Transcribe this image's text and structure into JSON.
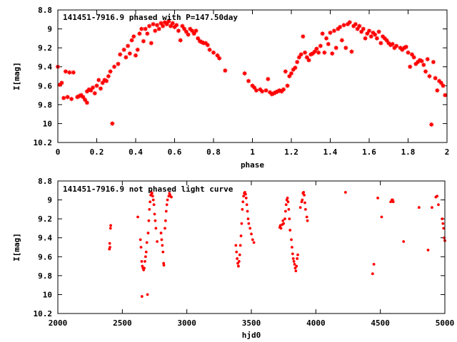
{
  "chart_data": [
    {
      "type": "scatter",
      "title": "141451-7916.9 phased with P=147.50day",
      "xlabel": "phase",
      "ylabel": "I[mag]",
      "xlim": [
        0,
        2
      ],
      "ylim": [
        10.2,
        8.8
      ],
      "y_inverted": true,
      "xticks": [
        "0",
        "0.2",
        "0.4",
        "0.6",
        "0.8",
        "1",
        "1.2",
        "1.4",
        "1.6",
        "1.8",
        "2"
      ],
      "yticks": [
        "8.8",
        "9",
        "9.2",
        "9.4",
        "9.6",
        "9.8",
        "10",
        "10.2"
      ],
      "marker_color": "#ff0000",
      "marker": "star",
      "points": [
        [
          0.0,
          9.4
        ],
        [
          0.01,
          9.59
        ],
        [
          0.02,
          9.57
        ],
        [
          0.03,
          9.73
        ],
        [
          0.04,
          9.45
        ],
        [
          0.05,
          9.72
        ],
        [
          0.06,
          9.46
        ],
        [
          0.07,
          9.74
        ],
        [
          0.08,
          9.46
        ],
        [
          0.1,
          9.72
        ],
        [
          0.11,
          9.71
        ],
        [
          0.12,
          9.7
        ],
        [
          0.13,
          9.72
        ],
        [
          0.14,
          9.75
        ],
        [
          0.15,
          9.78
        ],
        [
          0.15,
          9.66
        ],
        [
          0.16,
          9.64
        ],
        [
          0.17,
          9.65
        ],
        [
          0.18,
          9.62
        ],
        [
          0.19,
          9.68
        ],
        [
          0.2,
          9.6
        ],
        [
          0.21,
          9.54
        ],
        [
          0.22,
          9.63
        ],
        [
          0.23,
          9.57
        ],
        [
          0.24,
          9.54
        ],
        [
          0.25,
          9.55
        ],
        [
          0.26,
          9.5
        ],
        [
          0.27,
          9.45
        ],
        [
          0.28,
          10.0
        ],
        [
          0.29,
          9.4
        ],
        [
          0.31,
          9.37
        ],
        [
          0.32,
          9.27
        ],
        [
          0.34,
          9.22
        ],
        [
          0.35,
          9.3
        ],
        [
          0.36,
          9.18
        ],
        [
          0.37,
          9.26
        ],
        [
          0.38,
          9.12
        ],
        [
          0.39,
          9.08
        ],
        [
          0.4,
          9.28
        ],
        [
          0.41,
          9.22
        ],
        [
          0.42,
          9.05
        ],
        [
          0.43,
          9.0
        ],
        [
          0.44,
          9.13
        ],
        [
          0.45,
          9.0
        ],
        [
          0.46,
          9.05
        ],
        [
          0.47,
          8.97
        ],
        [
          0.48,
          9.15
        ],
        [
          0.49,
          8.95
        ],
        [
          0.5,
          9.02
        ],
        [
          0.51,
          8.96
        ],
        [
          0.52,
          9.0
        ],
        [
          0.53,
          8.94
        ],
        [
          0.54,
          8.97
        ],
        [
          0.55,
          8.93
        ],
        [
          0.56,
          8.95
        ],
        [
          0.57,
          8.92
        ],
        [
          0.58,
          8.97
        ],
        [
          0.59,
          8.94
        ],
        [
          0.6,
          8.98
        ],
        [
          0.61,
          8.96
        ],
        [
          0.62,
          9.02
        ],
        [
          0.63,
          9.12
        ],
        [
          0.64,
          8.97
        ],
        [
          0.65,
          9.0
        ],
        [
          0.66,
          9.03
        ],
        [
          0.67,
          9.06
        ],
        [
          0.68,
          9.0
        ],
        [
          0.69,
          9.02
        ],
        [
          0.7,
          9.05
        ],
        [
          0.71,
          9.02
        ],
        [
          0.72,
          9.1
        ],
        [
          0.73,
          9.13
        ],
        [
          0.74,
          9.14
        ],
        [
          0.75,
          9.15
        ],
        [
          0.76,
          9.15
        ],
        [
          0.77,
          9.17
        ],
        [
          0.78,
          9.22
        ],
        [
          0.8,
          9.25
        ],
        [
          0.82,
          9.28
        ],
        [
          0.83,
          9.31
        ],
        [
          0.86,
          9.44
        ],
        [
          0.96,
          9.47
        ],
        [
          0.98,
          9.55
        ],
        [
          1.0,
          9.6
        ],
        [
          1.01,
          9.62
        ],
        [
          1.02,
          9.65
        ],
        [
          1.04,
          9.64
        ],
        [
          1.05,
          9.66
        ],
        [
          1.07,
          9.65
        ],
        [
          1.08,
          9.53
        ],
        [
          1.09,
          9.67
        ],
        [
          1.1,
          9.69
        ],
        [
          1.11,
          9.68
        ],
        [
          1.12,
          9.67
        ],
        [
          1.13,
          9.66
        ],
        [
          1.14,
          9.65
        ],
        [
          1.15,
          9.66
        ],
        [
          1.16,
          9.64
        ],
        [
          1.17,
          9.45
        ],
        [
          1.18,
          9.6
        ],
        [
          1.19,
          9.5
        ],
        [
          1.2,
          9.47
        ],
        [
          1.21,
          9.43
        ],
        [
          1.22,
          9.41
        ],
        [
          1.23,
          9.35
        ],
        [
          1.24,
          9.3
        ],
        [
          1.25,
          9.27
        ],
        [
          1.26,
          9.08
        ],
        [
          1.27,
          9.25
        ],
        [
          1.28,
          9.3
        ],
        [
          1.29,
          9.33
        ],
        [
          1.3,
          9.27
        ],
        [
          1.31,
          9.26
        ],
        [
          1.32,
          9.24
        ],
        [
          1.33,
          9.21
        ],
        [
          1.34,
          9.25
        ],
        [
          1.35,
          9.18
        ],
        [
          1.36,
          9.05
        ],
        [
          1.37,
          9.25
        ],
        [
          1.38,
          9.1
        ],
        [
          1.39,
          9.16
        ],
        [
          1.4,
          9.04
        ],
        [
          1.41,
          9.26
        ],
        [
          1.42,
          9.02
        ],
        [
          1.43,
          9.2
        ],
        [
          1.44,
          9.0
        ],
        [
          1.45,
          8.98
        ],
        [
          1.46,
          9.12
        ],
        [
          1.47,
          8.96
        ],
        [
          1.48,
          9.2
        ],
        [
          1.49,
          8.95
        ],
        [
          1.5,
          8.93
        ],
        [
          1.51,
          9.24
        ],
        [
          1.52,
          8.97
        ],
        [
          1.53,
          8.95
        ],
        [
          1.54,
          9.0
        ],
        [
          1.55,
          8.97
        ],
        [
          1.56,
          9.03
        ],
        [
          1.57,
          9.0
        ],
        [
          1.58,
          9.1
        ],
        [
          1.59,
          9.05
        ],
        [
          1.6,
          9.02
        ],
        [
          1.61,
          9.08
        ],
        [
          1.62,
          9.04
        ],
        [
          1.63,
          9.06
        ],
        [
          1.64,
          9.1
        ],
        [
          1.65,
          9.03
        ],
        [
          1.66,
          9.15
        ],
        [
          1.67,
          9.08
        ],
        [
          1.68,
          9.1
        ],
        [
          1.69,
          9.12
        ],
        [
          1.7,
          9.15
        ],
        [
          1.71,
          9.17
        ],
        [
          1.72,
          9.16
        ],
        [
          1.73,
          9.2
        ],
        [
          1.74,
          9.18
        ],
        [
          1.76,
          9.2
        ],
        [
          1.77,
          9.22
        ],
        [
          1.78,
          9.2
        ],
        [
          1.79,
          9.19
        ],
        [
          1.8,
          9.25
        ],
        [
          1.81,
          9.4
        ],
        [
          1.82,
          9.27
        ],
        [
          1.83,
          9.3
        ],
        [
          1.84,
          9.37
        ],
        [
          1.85,
          9.35
        ],
        [
          1.86,
          9.33
        ],
        [
          1.87,
          9.34
        ],
        [
          1.88,
          9.38
        ],
        [
          1.89,
          9.45
        ],
        [
          1.9,
          9.32
        ],
        [
          1.91,
          9.5
        ],
        [
          1.92,
          10.01
        ],
        [
          1.93,
          9.35
        ],
        [
          1.94,
          9.52
        ],
        [
          1.95,
          9.65
        ],
        [
          1.96,
          9.55
        ],
        [
          1.97,
          9.57
        ],
        [
          1.98,
          9.6
        ],
        [
          1.99,
          9.7
        ]
      ]
    },
    {
      "type": "scatter",
      "title": "141451-7916.9 not phased light curve",
      "xlabel": "hjd0",
      "ylabel": "I[mag]",
      "xlim": [
        2000,
        5000
      ],
      "ylim": [
        10.2,
        8.8
      ],
      "y_inverted": true,
      "xticks": [
        "2000",
        "2500",
        "3000",
        "3500",
        "4000",
        "4500",
        "5000"
      ],
      "yticks": [
        "8.8",
        "9",
        "9.2",
        "9.4",
        "9.6",
        "9.8",
        "10",
        "10.2"
      ],
      "marker_color": "#ff0000",
      "marker": "dot",
      "points": [
        [
          2400,
          9.52
        ],
        [
          2402,
          9.46
        ],
        [
          2404,
          9.5
        ],
        [
          2408,
          9.3
        ],
        [
          2410,
          9.27
        ],
        [
          2620,
          9.18
        ],
        [
          2640,
          9.42
        ],
        [
          2645,
          9.5
        ],
        [
          2650,
          9.65
        ],
        [
          2652,
          10.02
        ],
        [
          2655,
          9.7
        ],
        [
          2660,
          9.72
        ],
        [
          2665,
          9.74
        ],
        [
          2670,
          9.72
        ],
        [
          2675,
          9.65
        ],
        [
          2680,
          9.6
        ],
        [
          2685,
          9.55
        ],
        [
          2690,
          9.45
        ],
        [
          2695,
          10.0
        ],
        [
          2700,
          9.35
        ],
        [
          2705,
          9.22
        ],
        [
          2710,
          9.1
        ],
        [
          2715,
          9.02
        ],
        [
          2720,
          8.95
        ],
        [
          2725,
          8.92
        ],
        [
          2730,
          8.93
        ],
        [
          2735,
          8.96
        ],
        [
          2740,
          9.0
        ],
        [
          2745,
          9.05
        ],
        [
          2750,
          9.15
        ],
        [
          2755,
          9.22
        ],
        [
          2760,
          9.3
        ],
        [
          2770,
          9.44
        ],
        [
          2800,
          9.35
        ],
        [
          2805,
          9.42
        ],
        [
          2810,
          9.48
        ],
        [
          2815,
          9.55
        ],
        [
          2820,
          9.67
        ],
        [
          2822,
          9.69
        ],
        [
          2830,
          9.3
        ],
        [
          2835,
          9.22
        ],
        [
          2840,
          9.12
        ],
        [
          2845,
          9.05
        ],
        [
          2850,
          9.0
        ],
        [
          2860,
          8.96
        ],
        [
          2865,
          8.93
        ],
        [
          2870,
          8.95
        ],
        [
          2880,
          8.97
        ],
        [
          3380,
          9.48
        ],
        [
          3385,
          9.55
        ],
        [
          3390,
          9.62
        ],
        [
          3395,
          9.67
        ],
        [
          3400,
          9.7
        ],
        [
          3405,
          9.65
        ],
        [
          3410,
          9.58
        ],
        [
          3415,
          9.48
        ],
        [
          3420,
          9.38
        ],
        [
          3425,
          9.25
        ],
        [
          3430,
          9.1
        ],
        [
          3435,
          9.02
        ],
        [
          3440,
          8.96
        ],
        [
          3445,
          8.93
        ],
        [
          3450,
          8.92
        ],
        [
          3455,
          8.94
        ],
        [
          3460,
          8.98
        ],
        [
          3465,
          9.05
        ],
        [
          3470,
          9.12
        ],
        [
          3475,
          9.2
        ],
        [
          3480,
          9.25
        ],
        [
          3490,
          9.3
        ],
        [
          3500,
          9.36
        ],
        [
          3510,
          9.42
        ],
        [
          3520,
          9.45
        ],
        [
          3720,
          9.29
        ],
        [
          3725,
          9.27
        ],
        [
          3730,
          9.3
        ],
        [
          3740,
          9.26
        ],
        [
          3745,
          9.22
        ],
        [
          3750,
          9.25
        ],
        [
          3760,
          9.2
        ],
        [
          3765,
          9.12
        ],
        [
          3770,
          9.05
        ],
        [
          3775,
          9.0
        ],
        [
          3780,
          8.98
        ],
        [
          3785,
          9.02
        ],
        [
          3790,
          9.1
        ],
        [
          3795,
          9.2
        ],
        [
          3800,
          9.32
        ],
        [
          3810,
          9.42
        ],
        [
          3815,
          9.5
        ],
        [
          3820,
          9.57
        ],
        [
          3825,
          9.62
        ],
        [
          3830,
          9.65
        ],
        [
          3835,
          9.68
        ],
        [
          3840,
          9.72
        ],
        [
          3845,
          9.75
        ],
        [
          3850,
          9.7
        ],
        [
          3855,
          9.62
        ],
        [
          3860,
          9.58
        ],
        [
          3880,
          9.08
        ],
        [
          3890,
          9.02
        ],
        [
          3895,
          9.0
        ],
        [
          3900,
          8.93
        ],
        [
          3905,
          8.92
        ],
        [
          3910,
          8.95
        ],
        [
          3915,
          9.03
        ],
        [
          3920,
          9.1
        ],
        [
          3930,
          9.18
        ],
        [
          3935,
          9.22
        ],
        [
          4230,
          8.92
        ],
        [
          4440,
          9.78
        ],
        [
          4450,
          9.68
        ],
        [
          4480,
          8.98
        ],
        [
          4510,
          9.18
        ],
        [
          4580,
          9.02
        ],
        [
          4590,
          9.0
        ],
        [
          4595,
          9.0
        ],
        [
          4600,
          9.02
        ],
        [
          4680,
          9.44
        ],
        [
          4800,
          9.08
        ],
        [
          4870,
          9.53
        ],
        [
          4900,
          9.08
        ],
        [
          4930,
          8.97
        ],
        [
          4940,
          8.96
        ],
        [
          4950,
          9.05
        ],
        [
          4980,
          9.2
        ],
        [
          4985,
          9.25
        ],
        [
          4990,
          9.3
        ],
        [
          4995,
          9.4
        ],
        [
          5000,
          9.43
        ]
      ]
    }
  ]
}
